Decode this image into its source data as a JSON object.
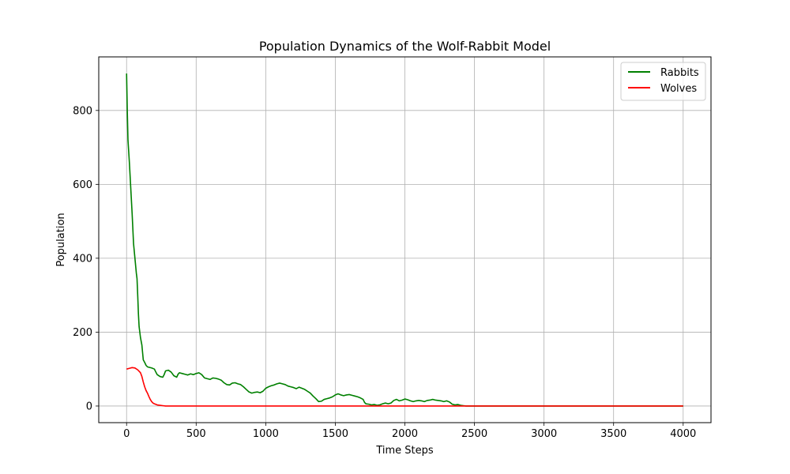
{
  "chart_data": {
    "type": "line",
    "title": "Population Dynamics of the Wolf-Rabbit Model",
    "xlabel": "Time Steps",
    "ylabel": "Population",
    "xlim": [
      -200,
      4200
    ],
    "ylim": [
      -45,
      945
    ],
    "xticks": [
      0,
      500,
      1000,
      1500,
      2000,
      2500,
      3000,
      3500,
      4000
    ],
    "yticks": [
      0,
      200,
      400,
      600,
      800
    ],
    "grid": true,
    "legend_position": "top-right",
    "series": [
      {
        "name": "Rabbits",
        "color": "#008000",
        "points": [
          [
            0,
            900
          ],
          [
            5,
            800
          ],
          [
            10,
            720
          ],
          [
            20,
            660
          ],
          [
            30,
            590
          ],
          [
            40,
            520
          ],
          [
            50,
            440
          ],
          [
            60,
            400
          ],
          [
            70,
            360
          ],
          [
            75,
            345
          ],
          [
            80,
            300
          ],
          [
            85,
            250
          ],
          [
            90,
            215
          ],
          [
            95,
            200
          ],
          [
            100,
            185
          ],
          [
            110,
            165
          ],
          [
            115,
            145
          ],
          [
            120,
            125
          ],
          [
            130,
            118
          ],
          [
            140,
            110
          ],
          [
            150,
            106
          ],
          [
            160,
            105
          ],
          [
            180,
            103
          ],
          [
            200,
            100
          ],
          [
            210,
            92
          ],
          [
            220,
            85
          ],
          [
            240,
            80
          ],
          [
            260,
            78
          ],
          [
            270,
            85
          ],
          [
            280,
            95
          ],
          [
            300,
            97
          ],
          [
            320,
            92
          ],
          [
            340,
            82
          ],
          [
            360,
            78
          ],
          [
            370,
            86
          ],
          [
            380,
            90
          ],
          [
            400,
            88
          ],
          [
            420,
            86
          ],
          [
            440,
            84
          ],
          [
            460,
            87
          ],
          [
            480,
            85
          ],
          [
            500,
            88
          ],
          [
            520,
            90
          ],
          [
            540,
            85
          ],
          [
            560,
            76
          ],
          [
            580,
            74
          ],
          [
            600,
            72
          ],
          [
            620,
            76
          ],
          [
            640,
            75
          ],
          [
            660,
            73
          ],
          [
            680,
            70
          ],
          [
            700,
            63
          ],
          [
            720,
            58
          ],
          [
            740,
            57
          ],
          [
            760,
            62
          ],
          [
            780,
            63
          ],
          [
            800,
            60
          ],
          [
            820,
            58
          ],
          [
            840,
            52
          ],
          [
            860,
            45
          ],
          [
            880,
            38
          ],
          [
            900,
            35
          ],
          [
            920,
            37
          ],
          [
            940,
            38
          ],
          [
            960,
            36
          ],
          [
            980,
            40
          ],
          [
            1000,
            48
          ],
          [
            1020,
            52
          ],
          [
            1040,
            55
          ],
          [
            1060,
            57
          ],
          [
            1080,
            60
          ],
          [
            1100,
            62
          ],
          [
            1120,
            60
          ],
          [
            1140,
            58
          ],
          [
            1160,
            54
          ],
          [
            1180,
            52
          ],
          [
            1200,
            50
          ],
          [
            1220,
            47
          ],
          [
            1240,
            51
          ],
          [
            1260,
            48
          ],
          [
            1280,
            45
          ],
          [
            1300,
            40
          ],
          [
            1320,
            35
          ],
          [
            1340,
            27
          ],
          [
            1360,
            20
          ],
          [
            1380,
            12
          ],
          [
            1400,
            13
          ],
          [
            1420,
            18
          ],
          [
            1440,
            20
          ],
          [
            1460,
            22
          ],
          [
            1480,
            25
          ],
          [
            1500,
            30
          ],
          [
            1520,
            33
          ],
          [
            1540,
            30
          ],
          [
            1560,
            28
          ],
          [
            1580,
            30
          ],
          [
            1600,
            31
          ],
          [
            1620,
            29
          ],
          [
            1640,
            27
          ],
          [
            1660,
            25
          ],
          [
            1680,
            22
          ],
          [
            1700,
            18
          ],
          [
            1710,
            10
          ],
          [
            1720,
            6
          ],
          [
            1740,
            5
          ],
          [
            1760,
            3
          ],
          [
            1780,
            4
          ],
          [
            1800,
            2
          ],
          [
            1820,
            3
          ],
          [
            1840,
            6
          ],
          [
            1860,
            8
          ],
          [
            1880,
            6
          ],
          [
            1900,
            8
          ],
          [
            1920,
            15
          ],
          [
            1940,
            18
          ],
          [
            1960,
            14
          ],
          [
            1980,
            16
          ],
          [
            2000,
            19
          ],
          [
            2020,
            17
          ],
          [
            2040,
            14
          ],
          [
            2060,
            12
          ],
          [
            2080,
            14
          ],
          [
            2100,
            15
          ],
          [
            2120,
            14
          ],
          [
            2140,
            12
          ],
          [
            2160,
            15
          ],
          [
            2180,
            16
          ],
          [
            2200,
            18
          ],
          [
            2220,
            16
          ],
          [
            2240,
            15
          ],
          [
            2260,
            14
          ],
          [
            2280,
            12
          ],
          [
            2300,
            14
          ],
          [
            2320,
            11
          ],
          [
            2340,
            5
          ],
          [
            2360,
            3
          ],
          [
            2380,
            4
          ],
          [
            2400,
            2
          ],
          [
            2420,
            1
          ],
          [
            2440,
            0
          ],
          [
            2460,
            0
          ],
          [
            4000,
            0
          ]
        ]
      },
      {
        "name": "Wolves",
        "color": "#ff0000",
        "points": [
          [
            0,
            100
          ],
          [
            20,
            102
          ],
          [
            40,
            104
          ],
          [
            60,
            103
          ],
          [
            80,
            98
          ],
          [
            100,
            90
          ],
          [
            110,
            80
          ],
          [
            120,
            65
          ],
          [
            130,
            52
          ],
          [
            140,
            42
          ],
          [
            150,
            35
          ],
          [
            160,
            26
          ],
          [
            170,
            18
          ],
          [
            180,
            12
          ],
          [
            190,
            8
          ],
          [
            200,
            6
          ],
          [
            220,
            3
          ],
          [
            240,
            2
          ],
          [
            260,
            1
          ],
          [
            280,
            0
          ],
          [
            300,
            0
          ],
          [
            4000,
            0
          ]
        ]
      }
    ]
  }
}
